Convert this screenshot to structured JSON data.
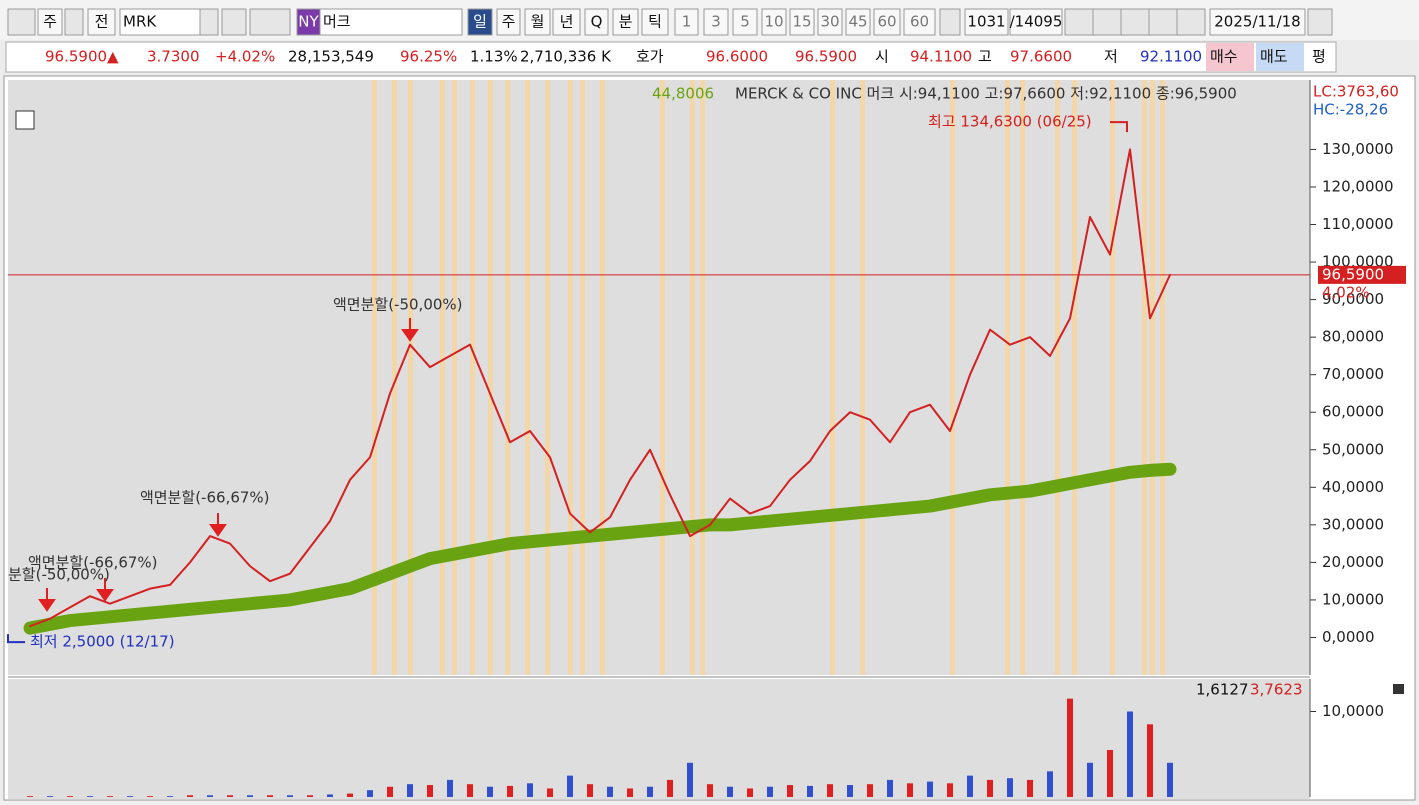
{
  "toolbar": {
    "items": [
      "주",
      "전",
      "MRK",
      "NY",
      "머크",
      "일",
      "주",
      "월",
      "년",
      "Q",
      "분",
      "틱",
      "1",
      "3",
      "5",
      "10",
      "15",
      "30",
      "45",
      "60",
      "60",
      "1031",
      "/14095",
      "2025/11/18"
    ]
  },
  "quote_bar": {
    "items": [
      "96.5900▲",
      "3.7300",
      "+4.02%",
      "28,153,549",
      "96.25%",
      "1.13%",
      "2,710,336 K",
      "호가",
      "96.6000",
      "96.5900",
      "시",
      "94.1100",
      "고",
      "97.6600",
      "저",
      "92.1100",
      "매수",
      "매도",
      "평"
    ]
  },
  "chart_data": [
    {
      "type": "line",
      "title": "MERCK & CO INC  머크 시:94,1100 고:97,6600 저:92,1100 종:96,5900",
      "indicator_label": "44,8006",
      "lc_label": "LC:3763,60",
      "hc_label": "HC:-28,26",
      "categories": [
        null,
        null,
        null,
        null,
        null,
        null,
        null,
        null,
        null,
        null,
        null,
        null,
        null,
        null,
        null,
        null,
        null,
        null,
        null,
        null,
        null,
        null,
        null,
        null,
        null,
        null,
        null,
        null,
        null,
        null,
        null,
        null,
        null,
        null,
        null,
        null,
        null,
        null,
        null,
        null,
        null,
        null,
        null,
        null,
        null,
        null,
        null,
        null,
        null,
        null,
        null,
        null,
        null,
        null,
        null,
        null,
        null,
        null
      ],
      "series": [
        {
          "color": "#d42020",
          "values": [
            3,
            5,
            8,
            11,
            9,
            11,
            13,
            14,
            20,
            27,
            25,
            19,
            15,
            17,
            24,
            31,
            42,
            48,
            65,
            78,
            72,
            75,
            78,
            65,
            52,
            55,
            48,
            33,
            28,
            32,
            42,
            50,
            38,
            27,
            30,
            37,
            33,
            35,
            42,
            47,
            55,
            60,
            58,
            52,
            60,
            62,
            55,
            70,
            82,
            78,
            80,
            75,
            85,
            112,
            102,
            130,
            85,
            96.59
          ]
        },
        {
          "color": "#6aa312",
          "values": [
            2.5,
            3.5,
            4.5,
            5,
            5.5,
            6,
            6.5,
            7,
            7.5,
            8,
            8.5,
            9,
            9.5,
            10,
            11,
            12,
            13,
            15,
            17,
            19,
            21,
            22,
            23,
            24,
            25,
            25.5,
            26,
            26.5,
            27,
            27.5,
            28,
            28.5,
            29,
            29.5,
            30,
            30,
            30.5,
            31,
            31.5,
            32,
            32.5,
            33,
            33.5,
            34,
            34.5,
            35,
            36,
            37,
            38,
            38.5,
            39,
            40,
            41,
            42,
            43,
            44,
            44.5,
            44.8
          ]
        }
      ],
      "last_value": 96.59,
      "last_label": "96,5900",
      "change_label": "4,02%",
      "high": 134.63,
      "high_label": "최고 134,6300 (06/25)",
      "low": 2.5,
      "low_label": "최저 2,5000 (12/17)",
      "annotations": [
        "액면분할(-50,00%)",
        "액면분할(-66,67%)",
        "액면분할(-66,67%)",
        "분할(-50,00%)"
      ],
      "ylim": [
        -10,
        148.5
      ],
      "yticks": [
        {
          "value": 0,
          "label": "0,0000"
        },
        {
          "value": 10,
          "label": "10,0000"
        },
        {
          "value": 20,
          "label": "20,0000"
        },
        {
          "value": 30,
          "label": "30,0000"
        },
        {
          "value": 40,
          "label": "40,0000"
        },
        {
          "value": 50,
          "label": "50,0000"
        },
        {
          "value": 60,
          "label": "60,0000"
        },
        {
          "value": 70,
          "label": "70,0000"
        },
        {
          "value": 80,
          "label": "80,0000"
        },
        {
          "value": 90,
          "label": "90,0000"
        },
        {
          "value": 100,
          "label": "100,0000"
        },
        {
          "value": 110,
          "label": "110,0000"
        },
        {
          "value": 120,
          "label": "120,0000"
        },
        {
          "value": 130,
          "label": "130,0000"
        }
      ]
    },
    {
      "type": "bar",
      "label_left": "1,6127",
      "label_right": "3,7623",
      "categories": [
        null,
        null,
        null,
        null,
        null,
        null,
        null,
        null,
        null,
        null,
        null,
        null,
        null,
        null,
        null,
        null,
        null,
        null,
        null,
        null,
        null,
        null,
        null,
        null,
        null,
        null,
        null,
        null,
        null,
        null,
        null,
        null,
        null,
        null,
        null,
        null,
        null,
        null,
        null,
        null,
        null,
        null,
        null,
        null,
        null,
        null,
        null,
        null,
        null,
        null,
        null,
        null,
        null,
        null,
        null,
        null,
        null,
        null
      ],
      "color": "#e02020",
      "values": [
        0.1,
        0.1,
        0.1,
        0.1,
        0.1,
        0.1,
        0.1,
        0.1,
        0.2,
        0.2,
        0.2,
        0.2,
        0.2,
        0.2,
        0.2,
        0.3,
        0.4,
        0.8,
        1.2,
        1.5,
        1.4,
        2,
        1.5,
        1.2,
        1.3,
        1.6,
        1,
        2.5,
        1.5,
        1.2,
        1,
        1.2,
        2,
        4,
        1.5,
        1.2,
        1,
        1.2,
        1.4,
        1.3,
        1.5,
        1.4,
        1.5,
        2,
        1.6,
        1.8,
        1.6,
        2.5,
        2,
        2.2,
        2,
        3,
        11.5,
        4,
        5.5,
        10,
        8.5,
        4
      ],
      "ylim": [
        0,
        13.8
      ],
      "yticks": [
        {
          "value": 10,
          "label": "10,0000"
        }
      ]
    }
  ]
}
